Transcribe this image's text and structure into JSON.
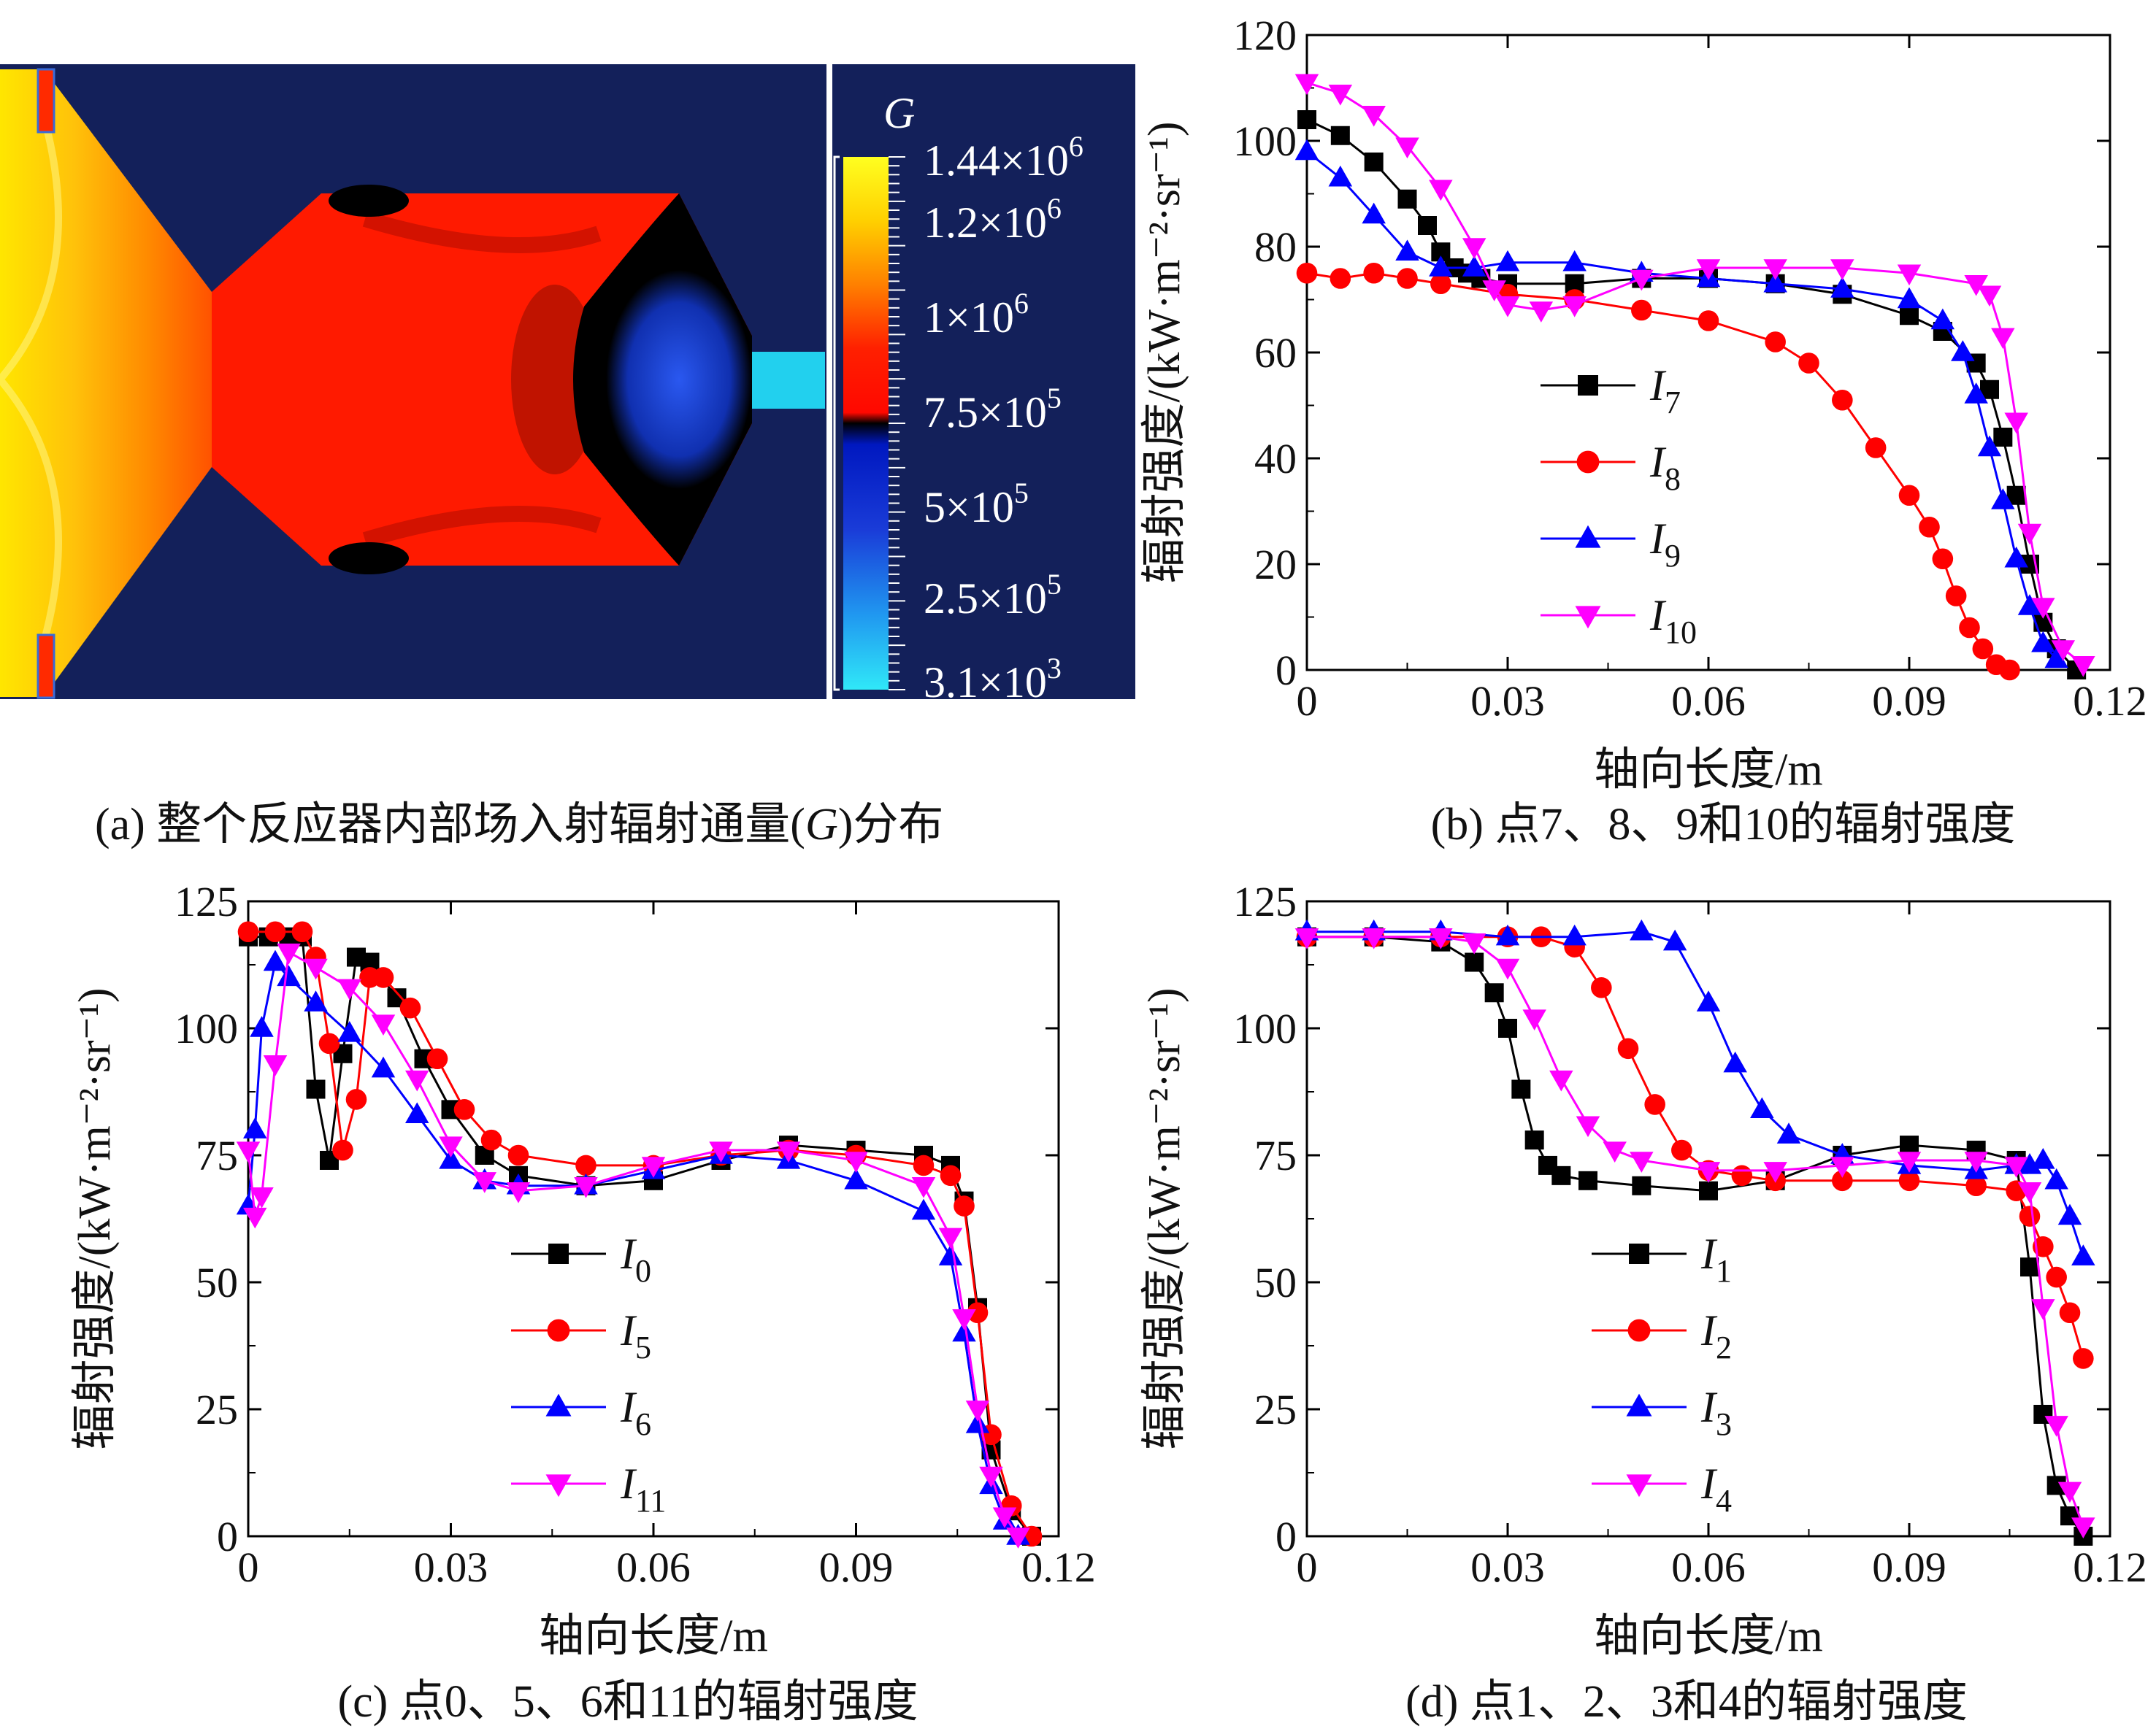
{
  "colors": {
    "I0": "#000000",
    "I1": "#000000",
    "I7": "#000000",
    "I5": "#ff0000",
    "I2": "#ff0000",
    "I8": "#ff0000",
    "I6": "#0000ff",
    "I3": "#0000ff",
    "I9": "#0000ff",
    "I11": "#ff00ff",
    "I4": "#ff00ff",
    "I10": "#ff00ff",
    "contour_background": "#13205a",
    "contour_red": "#ff1a00",
    "contour_blue": "#1a3cd8",
    "contour_cyan": "#20d8f0"
  },
  "panel_a": {
    "caption_prefix": "(a) 整个反应器内部场入射辐射通量(",
    "caption_symbol": "G",
    "caption_suffix": ")分布",
    "colorbar": {
      "symbol": "G",
      "labels": [
        {
          "mantissa": "1.44×10",
          "exp": "6"
        },
        {
          "mantissa": "1.2×10",
          "exp": "6"
        },
        {
          "mantissa": "1×10",
          "exp": "6"
        },
        {
          "mantissa": "7.5×10",
          "exp": "5"
        },
        {
          "mantissa": "5×10",
          "exp": "5"
        },
        {
          "mantissa": "2.5×10",
          "exp": "5"
        },
        {
          "mantissa": "3.1×10",
          "exp": "3"
        }
      ]
    }
  },
  "chart_data": [
    {
      "id": "b",
      "type": "line",
      "caption": "(b) 点7、8、9和10的辐射强度",
      "xlabel": "轴向长度/m",
      "ylabel": "辐射强度/(kW·m⁻²·sr⁻¹)",
      "xlim": [
        0,
        0.12
      ],
      "ylim": [
        0,
        120
      ],
      "xticks": [
        0,
        0.03,
        0.06,
        0.09,
        0.12
      ],
      "xtick_labels": [
        "0",
        "0.03",
        "0.06",
        "0.09",
        "0.12"
      ],
      "yticks": [
        0,
        20,
        40,
        60,
        80,
        100,
        120
      ],
      "ytick_labels": [
        "0",
        "20",
        "40",
        "60",
        "80",
        "100",
        "120"
      ],
      "legend_position": "lower-left",
      "series": [
        {
          "name": "I",
          "sub": "7",
          "color_key": "I7",
          "marker": "square",
          "x": [
            0,
            0.005,
            0.01,
            0.015,
            0.018,
            0.02,
            0.022,
            0.024,
            0.026,
            0.03,
            0.04,
            0.05,
            0.06,
            0.07,
            0.08,
            0.09,
            0.095,
            0.1,
            0.102,
            0.104,
            0.106,
            0.108,
            0.11,
            0.112,
            0.115
          ],
          "y": [
            104,
            101,
            96,
            89,
            84,
            79,
            76,
            75,
            74,
            73,
            73,
            74,
            74,
            73,
            71,
            67,
            64,
            58,
            53,
            44,
            33,
            20,
            9,
            4,
            0
          ]
        },
        {
          "name": "I",
          "sub": "8",
          "color_key": "I8",
          "marker": "circle",
          "x": [
            0,
            0.005,
            0.01,
            0.015,
            0.02,
            0.03,
            0.04,
            0.05,
            0.06,
            0.07,
            0.075,
            0.08,
            0.085,
            0.09,
            0.093,
            0.095,
            0.097,
            0.099,
            0.101,
            0.103,
            0.105
          ],
          "y": [
            75,
            74,
            75,
            74,
            73,
            71,
            70,
            68,
            66,
            62,
            58,
            51,
            42,
            33,
            27,
            21,
            14,
            8,
            4,
            1,
            0
          ]
        },
        {
          "name": "I",
          "sub": "9",
          "color_key": "I9",
          "marker": "triangle-up",
          "x": [
            0,
            0.005,
            0.01,
            0.015,
            0.02,
            0.025,
            0.03,
            0.04,
            0.05,
            0.06,
            0.07,
            0.08,
            0.09,
            0.095,
            0.098,
            0.1,
            0.102,
            0.104,
            0.106,
            0.108,
            0.11,
            0.112
          ],
          "y": [
            98,
            93,
            86,
            79,
            76,
            76,
            77,
            77,
            75,
            74,
            73,
            72,
            70,
            66,
            60,
            52,
            42,
            32,
            21,
            12,
            5,
            2
          ]
        },
        {
          "name": "I",
          "sub": "10",
          "color_key": "I10",
          "marker": "triangle-down",
          "x": [
            0,
            0.005,
            0.01,
            0.015,
            0.02,
            0.025,
            0.028,
            0.03,
            0.035,
            0.04,
            0.05,
            0.06,
            0.07,
            0.08,
            0.09,
            0.1,
            0.102,
            0.104,
            0.106,
            0.108,
            0.11,
            0.113,
            0.116
          ],
          "y": [
            111,
            109,
            105,
            99,
            91,
            80,
            72,
            69,
            68,
            69,
            74,
            76,
            76,
            76,
            75,
            73,
            71,
            63,
            47,
            26,
            12,
            4,
            1
          ]
        }
      ]
    },
    {
      "id": "c",
      "type": "line",
      "caption": "(c) 点0、5、6和11的辐射强度",
      "xlabel": "轴向长度/m",
      "ylabel": "辐射强度/(kW·m⁻²·sr⁻¹)",
      "xlim": [
        0,
        0.12
      ],
      "ylim": [
        0,
        125
      ],
      "xticks": [
        0,
        0.03,
        0.06,
        0.09,
        0.12
      ],
      "xtick_labels": [
        "0",
        "0.03",
        "0.06",
        "0.09",
        "0.12"
      ],
      "yticks": [
        0,
        25,
        50,
        75,
        100,
        125
      ],
      "ytick_labels": [
        "0",
        "25",
        "50",
        "75",
        "100",
        "125"
      ],
      "legend_position": "lower-center",
      "series": [
        {
          "name": "I",
          "sub": "0",
          "color_key": "I0",
          "marker": "square",
          "x": [
            0,
            0.003,
            0.006,
            0.008,
            0.01,
            0.012,
            0.014,
            0.016,
            0.018,
            0.022,
            0.026,
            0.03,
            0.035,
            0.04,
            0.05,
            0.06,
            0.07,
            0.08,
            0.09,
            0.1,
            0.104,
            0.106,
            0.108,
            0.11,
            0.113,
            0.116
          ],
          "y": [
            118,
            118,
            118,
            118,
            88,
            74,
            95,
            114,
            113,
            106,
            94,
            84,
            75,
            71,
            69,
            70,
            74,
            77,
            76,
            75,
            73,
            66,
            45,
            17,
            5,
            0
          ]
        },
        {
          "name": "I",
          "sub": "5",
          "color_key": "I5",
          "marker": "circle",
          "x": [
            0,
            0.004,
            0.008,
            0.01,
            0.012,
            0.014,
            0.016,
            0.018,
            0.02,
            0.024,
            0.028,
            0.032,
            0.036,
            0.04,
            0.05,
            0.06,
            0.07,
            0.08,
            0.09,
            0.1,
            0.104,
            0.106,
            0.108,
            0.11,
            0.113,
            0.116
          ],
          "y": [
            119,
            119,
            119,
            114,
            97,
            76,
            86,
            110,
            110,
            104,
            94,
            84,
            78,
            75,
            73,
            73,
            75,
            76,
            75,
            73,
            71,
            65,
            44,
            20,
            6,
            0
          ]
        },
        {
          "name": "I",
          "sub": "6",
          "color_key": "I6",
          "marker": "triangle-up",
          "x": [
            0,
            0.001,
            0.002,
            0.004,
            0.006,
            0.01,
            0.015,
            0.02,
            0.025,
            0.03,
            0.035,
            0.04,
            0.05,
            0.06,
            0.07,
            0.08,
            0.09,
            0.1,
            0.104,
            0.106,
            0.108,
            0.11,
            0.112,
            0.114
          ],
          "y": [
            65,
            80,
            100,
            113,
            110,
            105,
            99,
            92,
            83,
            74,
            70,
            69,
            69,
            72,
            75,
            74,
            70,
            64,
            55,
            40,
            22,
            10,
            3,
            0
          ]
        },
        {
          "name": "I",
          "sub": "11",
          "color_key": "I11",
          "marker": "triangle-down",
          "x": [
            0,
            0.001,
            0.002,
            0.004,
            0.006,
            0.01,
            0.015,
            0.02,
            0.025,
            0.03,
            0.035,
            0.04,
            0.05,
            0.06,
            0.07,
            0.08,
            0.09,
            0.1,
            0.104,
            0.106,
            0.108,
            0.11,
            0.112,
            0.114
          ],
          "y": [
            76,
            63,
            67,
            93,
            115,
            112,
            108,
            101,
            90,
            77,
            70,
            68,
            69,
            73,
            76,
            76,
            74,
            69,
            59,
            43,
            25,
            12,
            4,
            0
          ]
        }
      ]
    },
    {
      "id": "d",
      "type": "line",
      "caption": "(d) 点1、2、3和4的辐射强度",
      "xlabel": "轴向长度/m",
      "ylabel": "辐射强度/(kW·m⁻²·sr⁻¹)",
      "xlim": [
        0,
        0.12
      ],
      "ylim": [
        0,
        125
      ],
      "xticks": [
        0,
        0.03,
        0.06,
        0.09,
        0.12
      ],
      "xtick_labels": [
        "0",
        "0.03",
        "0.06",
        "0.09",
        "0.12"
      ],
      "yticks": [
        0,
        25,
        50,
        75,
        100,
        125
      ],
      "ytick_labels": [
        "0",
        "25",
        "50",
        "75",
        "100",
        "125"
      ],
      "legend_position": "lower-center",
      "series": [
        {
          "name": "I",
          "sub": "1",
          "color_key": "I1",
          "marker": "square",
          "x": [
            0,
            0.01,
            0.02,
            0.025,
            0.028,
            0.03,
            0.032,
            0.034,
            0.036,
            0.038,
            0.042,
            0.05,
            0.06,
            0.07,
            0.08,
            0.09,
            0.1,
            0.106,
            0.108,
            0.11,
            0.112,
            0.114,
            0.116
          ],
          "y": [
            118,
            118,
            117,
            113,
            107,
            100,
            88,
            78,
            73,
            71,
            70,
            69,
            68,
            70,
            75,
            77,
            76,
            74,
            53,
            24,
            10,
            4,
            0
          ]
        },
        {
          "name": "I",
          "sub": "2",
          "color_key": "I2",
          "marker": "circle",
          "x": [
            0,
            0.01,
            0.02,
            0.03,
            0.035,
            0.04,
            0.044,
            0.048,
            0.052,
            0.056,
            0.06,
            0.065,
            0.07,
            0.08,
            0.09,
            0.1,
            0.106,
            0.108,
            0.11,
            0.112,
            0.114,
            0.116
          ],
          "y": [
            118,
            118,
            118,
            118,
            118,
            116,
            108,
            96,
            85,
            76,
            72,
            71,
            70,
            70,
            70,
            69,
            68,
            63,
            57,
            51,
            44,
            35
          ]
        },
        {
          "name": "I",
          "sub": "3",
          "color_key": "I3",
          "marker": "triangle-up",
          "x": [
            0,
            0.01,
            0.02,
            0.03,
            0.04,
            0.05,
            0.055,
            0.06,
            0.064,
            0.068,
            0.072,
            0.08,
            0.09,
            0.1,
            0.106,
            0.108,
            0.11,
            0.112,
            0.114,
            0.116
          ],
          "y": [
            119,
            119,
            119,
            118,
            118,
            119,
            117,
            105,
            93,
            84,
            79,
            75,
            73,
            72,
            73,
            73,
            74,
            70,
            63,
            55
          ]
        },
        {
          "name": "I",
          "sub": "4",
          "color_key": "I4",
          "marker": "triangle-down",
          "x": [
            0,
            0.01,
            0.02,
            0.025,
            0.03,
            0.034,
            0.038,
            0.042,
            0.046,
            0.05,
            0.06,
            0.07,
            0.08,
            0.09,
            0.1,
            0.106,
            0.108,
            0.11,
            0.112,
            0.114,
            0.116
          ],
          "y": [
            118,
            118,
            118,
            117,
            112,
            102,
            90,
            81,
            76,
            74,
            72,
            72,
            73,
            74,
            74,
            73,
            68,
            45,
            22,
            9,
            2
          ]
        }
      ]
    }
  ]
}
